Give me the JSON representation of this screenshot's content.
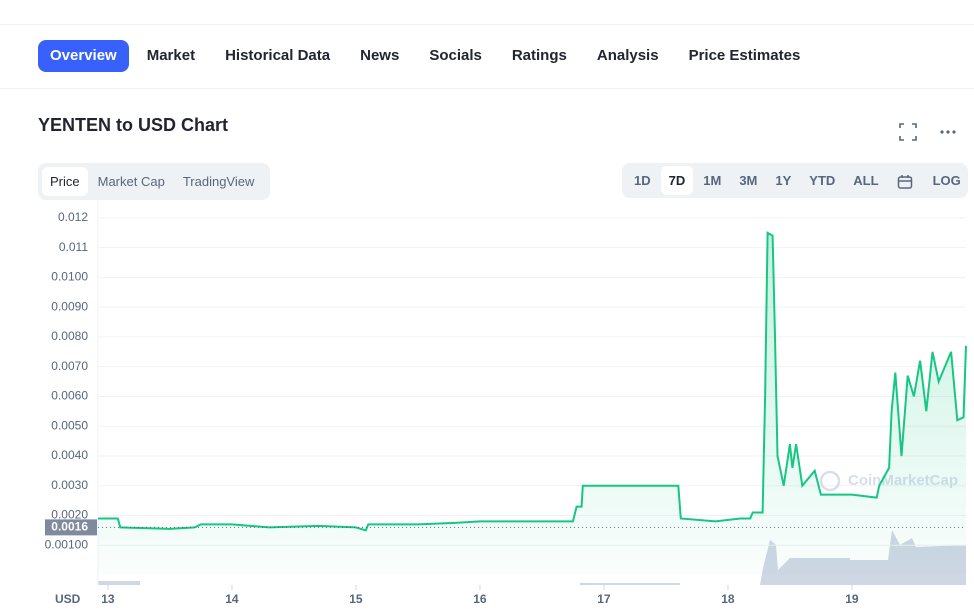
{
  "nav": {
    "tabs": [
      "Overview",
      "Market",
      "Historical Data",
      "News",
      "Socials",
      "Ratings",
      "Analysis",
      "Price Estimates"
    ],
    "active": 0
  },
  "header": {
    "title": "YENTEN to USD Chart"
  },
  "chart_tabs": {
    "items": [
      "Price",
      "Market Cap",
      "TradingView"
    ],
    "active": 0
  },
  "range_tabs": {
    "items": [
      "1D",
      "7D",
      "1M",
      "3M",
      "1Y",
      "YTD",
      "ALL"
    ],
    "active": 1,
    "scale_toggle": "LOG"
  },
  "chart_data": {
    "type": "line",
    "color": "#16c784",
    "grid": true,
    "x": [
      12.92,
      13.08,
      13.1,
      13.5,
      13.7,
      13.75,
      14.0,
      14.3,
      14.7,
      15.0,
      15.08,
      15.1,
      15.5,
      15.8,
      16.0,
      16.5,
      16.75,
      16.78,
      16.82,
      16.83,
      17.3,
      17.6,
      17.62,
      17.9,
      18.1,
      18.18,
      18.2,
      18.28,
      18.3,
      18.32,
      18.36,
      18.38,
      18.4,
      18.45,
      18.5,
      18.52,
      18.55,
      18.6,
      18.7,
      18.75,
      19.0,
      19.2,
      19.22,
      19.3,
      19.32,
      19.35,
      19.4,
      19.45,
      19.5,
      19.55,
      19.6,
      19.65,
      19.7,
      19.8,
      19.85,
      19.9,
      19.92
    ],
    "values": [
      0.0019,
      0.0019,
      0.0016,
      0.00155,
      0.0016,
      0.0017,
      0.0017,
      0.0016,
      0.00165,
      0.0016,
      0.0015,
      0.0017,
      0.0017,
      0.00175,
      0.0018,
      0.0018,
      0.0018,
      0.0023,
      0.0023,
      0.003,
      0.003,
      0.003,
      0.0019,
      0.0018,
      0.0019,
      0.0019,
      0.0021,
      0.0021,
      0.006,
      0.0115,
      0.0114,
      0.008,
      0.004,
      0.003,
      0.0044,
      0.0036,
      0.0044,
      0.003,
      0.0035,
      0.0027,
      0.0027,
      0.0026,
      0.003,
      0.0036,
      0.0055,
      0.0068,
      0.004,
      0.0067,
      0.006,
      0.0072,
      0.0055,
      0.0075,
      0.0065,
      0.0075,
      0.0052,
      0.0053,
      0.0077
    ],
    "xlim": [
      12.92,
      19.92
    ],
    "xticks": [
      13,
      14,
      15,
      16,
      17,
      18,
      19
    ],
    "ylim": [
      0,
      0.0125
    ],
    "yticks": [
      {
        "value": 0.001,
        "label": "0.00100"
      },
      {
        "value": 0.002,
        "label": "0.0020"
      },
      {
        "value": 0.003,
        "label": "0.0030"
      },
      {
        "value": 0.004,
        "label": "0.0040"
      },
      {
        "value": 0.005,
        "label": "0.0050"
      },
      {
        "value": 0.006,
        "label": "0.0060"
      },
      {
        "value": 0.007,
        "label": "0.0070"
      },
      {
        "value": 0.008,
        "label": "0.0080"
      },
      {
        "value": 0.009,
        "label": "0.0090"
      },
      {
        "value": 0.01,
        "label": "0.0100"
      },
      0.011,
      0.012
    ],
    "price_marker": 0.0016,
    "y_unit": "USD",
    "watermark": "CoinMarketCap"
  }
}
